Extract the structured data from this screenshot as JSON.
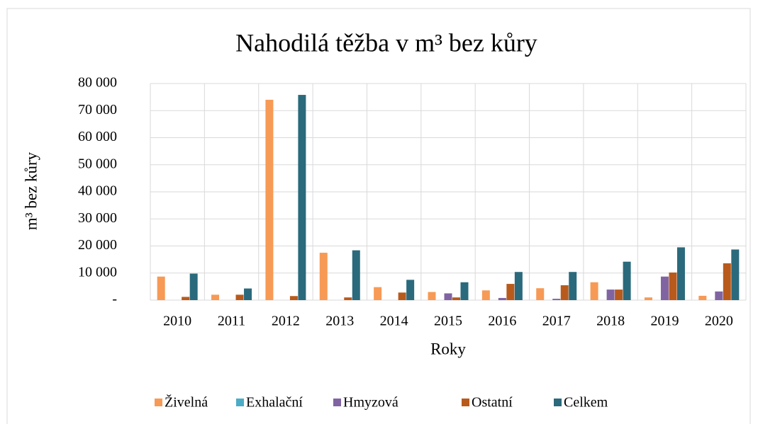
{
  "chart_data": {
    "type": "bar",
    "title": "Nahodilá těžba v m³ bez kůry",
    "xlabel": "Roky",
    "ylabel": "m³ bez kůry",
    "categories": [
      "2010",
      "2011",
      "2012",
      "2013",
      "2014",
      "2015",
      "2016",
      "2017",
      "2018",
      "2019",
      "2020"
    ],
    "series": [
      {
        "name": "Živelná",
        "color": "#f79a55",
        "values": [
          8700,
          2000,
          74000,
          17500,
          4800,
          3000,
          3600,
          4400,
          6600,
          1000,
          1600
        ]
      },
      {
        "name": "Exhalační",
        "color": "#4bacc6",
        "values": [
          0,
          0,
          0,
          0,
          0,
          0,
          0,
          0,
          0,
          0,
          0
        ]
      },
      {
        "name": "Hmyzová",
        "color": "#8064a2",
        "values": [
          0,
          0,
          0,
          0,
          0,
          2500,
          800,
          500,
          3900,
          8700,
          3200
        ]
      },
      {
        "name": "Ostatní",
        "color": "#b85a1c",
        "values": [
          1200,
          2000,
          1500,
          1000,
          2800,
          1000,
          6000,
          5500,
          3900,
          10200,
          13600
        ]
      },
      {
        "name": "Celkem",
        "color": "#2a6a7c",
        "values": [
          9800,
          4300,
          75800,
          18400,
          7500,
          6600,
          10400,
          10400,
          14200,
          19500,
          18700
        ]
      }
    ],
    "ylim": [
      0,
      80000
    ],
    "yticks": [
      {
        "value": 0,
        "label": "-"
      },
      {
        "value": 10000,
        "label": "10 000"
      },
      {
        "value": 20000,
        "label": "20 000"
      },
      {
        "value": 30000,
        "label": "30 000"
      },
      {
        "value": 40000,
        "label": "40 000"
      },
      {
        "value": 50000,
        "label": "50 000"
      },
      {
        "value": 60000,
        "label": "60 000"
      },
      {
        "value": 70000,
        "label": "70 000"
      },
      {
        "value": 80000,
        "label": "80 000"
      }
    ],
    "grid": true,
    "legend": "bottom"
  }
}
